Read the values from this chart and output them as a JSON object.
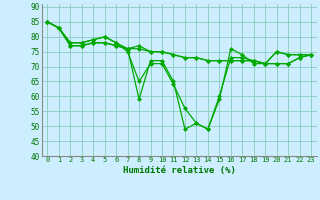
{
  "title": "",
  "xlabel": "Humidité relative (%)",
  "ylabel": "",
  "background_color": "#cceeff",
  "grid_color": "#aaddcc",
  "line_color": "#00aa00",
  "xlim": [
    -0.5,
    23.5
  ],
  "ylim": [
    40,
    91
  ],
  "yticks": [
    40,
    45,
    50,
    55,
    60,
    65,
    70,
    75,
    80,
    85,
    90
  ],
  "xticks": [
    0,
    1,
    2,
    3,
    4,
    5,
    6,
    7,
    8,
    9,
    10,
    11,
    12,
    13,
    14,
    15,
    16,
    17,
    18,
    19,
    20,
    21,
    22,
    23
  ],
  "series": [
    [
      85,
      83,
      78,
      78,
      79,
      80,
      78,
      76,
      59,
      72,
      72,
      65,
      49,
      51,
      49,
      59,
      76,
      74,
      71,
      71,
      75,
      74,
      74,
      74
    ],
    [
      85,
      83,
      78,
      78,
      79,
      80,
      78,
      75,
      65,
      71,
      71,
      64,
      56,
      51,
      49,
      60,
      73,
      73,
      72,
      71,
      75,
      74,
      74,
      74
    ],
    [
      85,
      83,
      77,
      77,
      78,
      78,
      77,
      76,
      77,
      75,
      75,
      74,
      73,
      73,
      72,
      72,
      72,
      72,
      72,
      71,
      71,
      71,
      73,
      74
    ],
    [
      85,
      83,
      77,
      77,
      78,
      78,
      77,
      76,
      76,
      75,
      75,
      74,
      73,
      73,
      72,
      72,
      72,
      72,
      72,
      71,
      71,
      71,
      73,
      74
    ]
  ]
}
